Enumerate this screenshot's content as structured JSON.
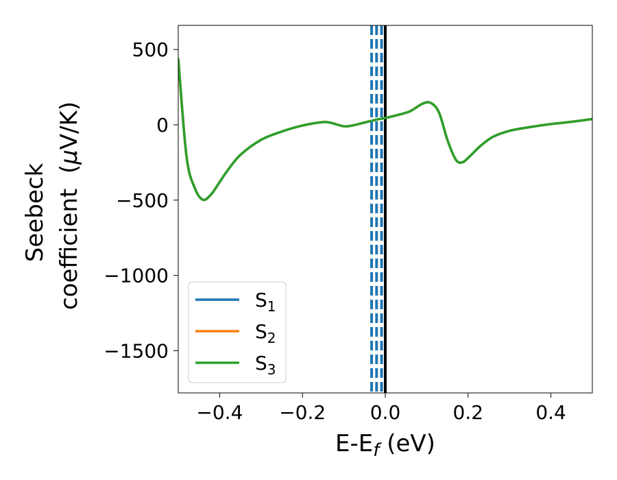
{
  "chart_data": {
    "type": "line",
    "title": "",
    "xlabel": {
      "main": "E-E",
      "sub": "f",
      "suffix": " (eV)"
    },
    "ylabel": {
      "line1": "Seebeck",
      "line2_pre": "coefficient  (",
      "mu": "μ",
      "line2_post": "V/K)"
    },
    "xlim": [
      -0.5,
      0.5
    ],
    "ylim": [
      -1780,
      660
    ],
    "x_ticks": [
      -0.4,
      -0.2,
      0.0,
      0.2,
      0.4
    ],
    "x_tick_labels": [
      "−0.4",
      "−0.2",
      "0.0",
      "0.2",
      "0.4"
    ],
    "y_ticks": [
      500,
      0,
      -500,
      -1000,
      -1500
    ],
    "y_tick_labels": [
      "500",
      "0",
      "−500",
      "−1000",
      "−1500"
    ],
    "grid": false,
    "legend_position": "lower-left",
    "vertical_lines": [
      {
        "x": -0.033,
        "style": "dashed",
        "color": "#1f77b4"
      },
      {
        "x": -0.021,
        "style": "dashed",
        "color": "#1f77b4"
      },
      {
        "x": -0.009,
        "style": "dashed",
        "color": "#1f77b4"
      },
      {
        "x": 0.0,
        "style": "solid",
        "color": "#000000"
      }
    ],
    "series": [
      {
        "name": "S",
        "sub": "1",
        "color": "#1f77b4",
        "x": [
          -0.5,
          -0.48,
          -0.46,
          -0.44,
          -0.42,
          -0.4,
          -0.38,
          -0.35,
          -0.3,
          -0.25,
          -0.2,
          -0.15,
          -0.13,
          -0.1,
          -0.08,
          -0.05,
          -0.02,
          0.0,
          0.03,
          0.06,
          0.09,
          0.11,
          0.13,
          0.15,
          0.17,
          0.185,
          0.2,
          0.23,
          0.26,
          0.3,
          0.35,
          0.4,
          0.45,
          0.5
        ],
        "y": [
          440,
          -210,
          -420,
          -498,
          -460,
          -380,
          -300,
          -200,
          -100,
          -45,
          -5,
          18,
          12,
          -10,
          -5,
          15,
          35,
          45,
          65,
          90,
          140,
          145,
          80,
          -100,
          -230,
          -250,
          -220,
          -140,
          -80,
          -40,
          -15,
          5,
          20,
          38
        ]
      },
      {
        "name": "S",
        "sub": "2",
        "color": "#ff7f0e",
        "x": [
          -0.5,
          -0.48,
          -0.46,
          -0.44,
          -0.42,
          -0.4,
          -0.38,
          -0.35,
          -0.3,
          -0.25,
          -0.2,
          -0.15,
          -0.13,
          -0.1,
          -0.08,
          -0.05,
          -0.02,
          0.0,
          0.03,
          0.06,
          0.09,
          0.11,
          0.13,
          0.15,
          0.17,
          0.185,
          0.2,
          0.23,
          0.26,
          0.3,
          0.35,
          0.4,
          0.45,
          0.5
        ],
        "y": [
          440,
          -210,
          -420,
          -498,
          -460,
          -380,
          -300,
          -200,
          -100,
          -45,
          -5,
          18,
          12,
          -10,
          -5,
          15,
          35,
          45,
          65,
          90,
          140,
          145,
          80,
          -100,
          -230,
          -250,
          -220,
          -140,
          -80,
          -40,
          -15,
          5,
          20,
          38
        ]
      },
      {
        "name": "S",
        "sub": "3",
        "color": "#2ca02c",
        "x": [
          -0.5,
          -0.48,
          -0.46,
          -0.44,
          -0.42,
          -0.4,
          -0.38,
          -0.35,
          -0.3,
          -0.25,
          -0.2,
          -0.15,
          -0.13,
          -0.1,
          -0.08,
          -0.05,
          -0.02,
          0.0,
          0.03,
          0.06,
          0.09,
          0.11,
          0.13,
          0.15,
          0.17,
          0.185,
          0.2,
          0.23,
          0.26,
          0.3,
          0.35,
          0.4,
          0.45,
          0.5
        ],
        "y": [
          440,
          -210,
          -420,
          -498,
          -460,
          -380,
          -300,
          -200,
          -100,
          -45,
          -5,
          18,
          12,
          -10,
          -5,
          15,
          35,
          45,
          65,
          90,
          140,
          145,
          80,
          -100,
          -230,
          -250,
          -220,
          -140,
          -80,
          -40,
          -15,
          5,
          20,
          38
        ]
      }
    ]
  }
}
